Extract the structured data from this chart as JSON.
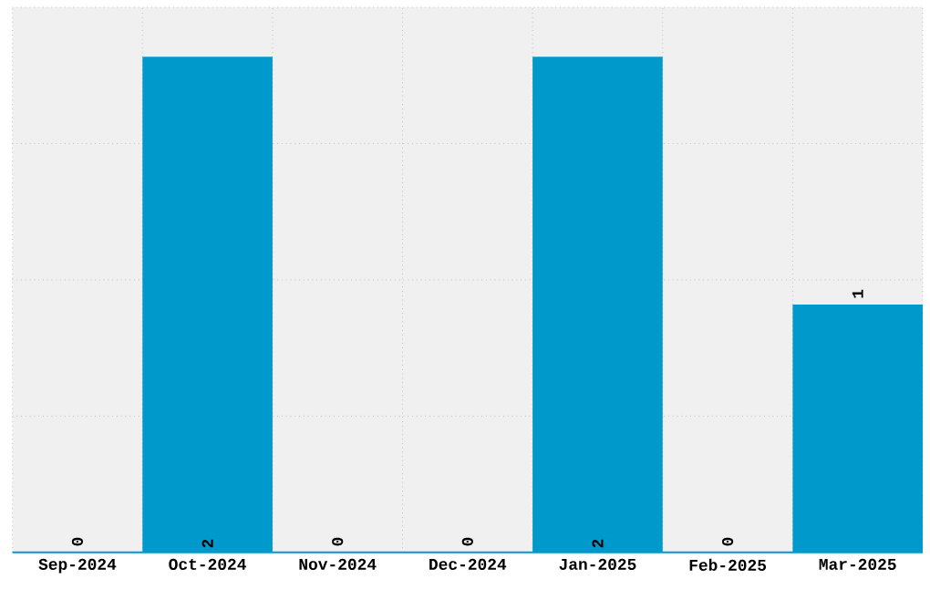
{
  "chart_data": {
    "type": "bar",
    "categories": [
      "Sep-2024",
      "Oct-2024",
      "Nov-2024",
      "Dec-2024",
      "Jan-2025",
      "Feb-2025",
      "Mar-2025"
    ],
    "values": [
      0,
      2,
      0,
      0,
      2,
      0,
      1
    ],
    "color": "#0099cc",
    "ylim": [
      0,
      2.2
    ],
    "yticks": [
      {
        "value": 0.55,
        "label": null
      },
      {
        "value": 1.1,
        "label": null
      },
      {
        "value": 1.65,
        "label": null
      },
      {
        "value": 2.2,
        "label": null
      }
    ],
    "grid": true,
    "data_labels": true,
    "tick_labels": "x"
  }
}
